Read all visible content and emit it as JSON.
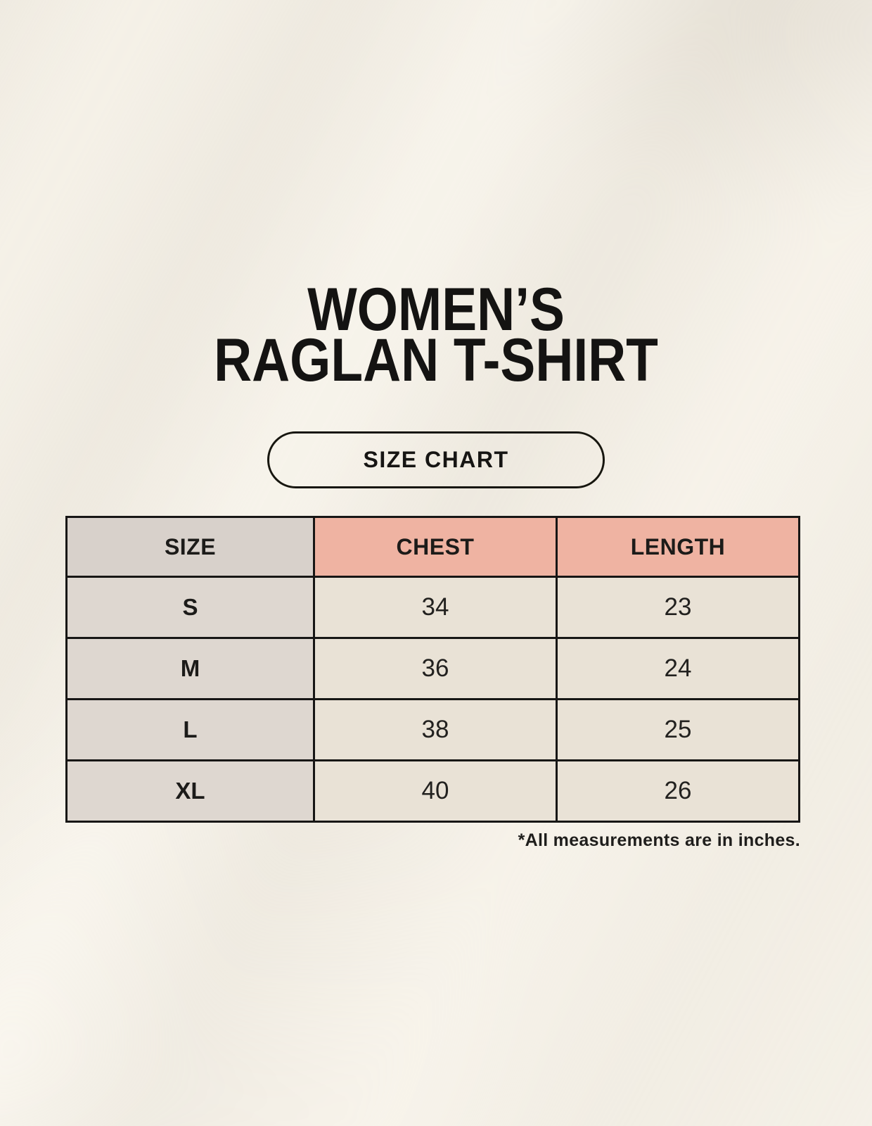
{
  "page": {
    "title_line1": "WOMEN’S",
    "title_line2": "RAGLAN T-SHIRT"
  },
  "size_chart_button": {
    "label": "SIZE CHART"
  },
  "table": {
    "headers": [
      "SIZE",
      "CHEST",
      "LENGTH"
    ],
    "rows": [
      {
        "size": "S",
        "chest": "34",
        "length": "23"
      },
      {
        "size": "M",
        "chest": "36",
        "length": "24"
      },
      {
        "size": "L",
        "chest": "38",
        "length": "25"
      },
      {
        "size": "XL",
        "chest": "40",
        "length": "26"
      }
    ]
  },
  "footnote": "*All measurements are in inches.",
  "colors": {
    "background_cream": "#f6f2e9",
    "header_size_bg": "#d8d1cb",
    "header_measure_bg": "#efb3a2",
    "size_column_bg": "#ded7d0",
    "value_cell_bg": "#e9e2d6",
    "table_border": "#171615",
    "text": "#161513"
  },
  "chart_data": {
    "type": "table",
    "title": "WOMEN’S RAGLAN T-SHIRT SIZE CHART",
    "columns": [
      "SIZE",
      "CHEST",
      "LENGTH"
    ],
    "rows": [
      [
        "S",
        34,
        23
      ],
      [
        "M",
        36,
        24
      ],
      [
        "L",
        38,
        25
      ],
      [
        "XL",
        40,
        26
      ]
    ],
    "units": "inches"
  }
}
